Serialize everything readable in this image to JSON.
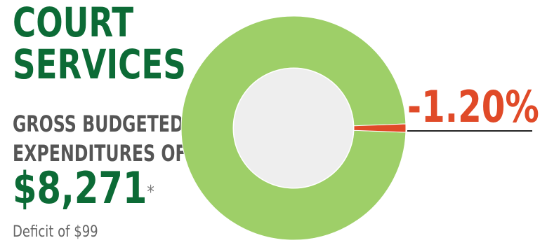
{
  "title_lines": [
    "COURT",
    "SERVICES"
  ],
  "subtitle_lines": [
    "GROSS BUDGETED",
    "EXPENDITURES OF"
  ],
  "amount": "$8,271",
  "amount_note": "*",
  "deficit_text": "Deficit of $99",
  "percent_label": "-1.20%",
  "colors": {
    "title_green": "#0c6b36",
    "donut_green": "#9ecf68",
    "donut_hole": "#eeeeee",
    "deficit_red": "#e04a28",
    "subtitle_gray": "#555555"
  },
  "chart_data": {
    "type": "pie",
    "style": "donut",
    "slices": [
      {
        "value": 98.8,
        "color": "#9ecf68"
      },
      {
        "value": 1.2,
        "color": "#e04a28"
      }
    ],
    "label": "-1.20%"
  }
}
